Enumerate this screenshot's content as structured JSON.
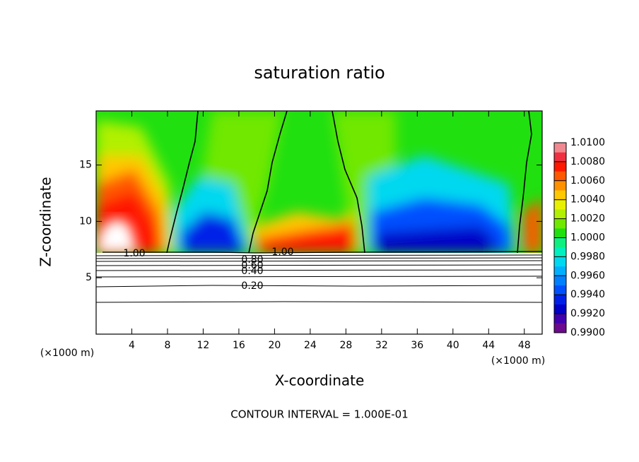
{
  "chart_data": {
    "type": "contour",
    "title": "saturation ratio",
    "xlabel": "X-coordinate",
    "ylabel": "Z-coordinate",
    "x_unit_labels": [
      "(×1000 m)",
      "(×1000 m)"
    ],
    "footer": "CONTOUR INTERVAL = 1.000E-01",
    "xlim": [
      0,
      50
    ],
    "ylim": [
      0,
      19.8
    ],
    "xticks": [
      4,
      8,
      12,
      16,
      20,
      24,
      28,
      32,
      36,
      40,
      44,
      48
    ],
    "yticks": [
      5,
      10,
      15
    ],
    "contour_labels": [
      {
        "value": 1,
        "label": "1.00"
      },
      {
        "value": 1,
        "label": "1.00"
      },
      {
        "value": 0.8,
        "label": "0.80"
      },
      {
        "value": 0.6,
        "label": "0.60"
      },
      {
        "value": 0.4,
        "label": "0.40"
      },
      {
        "value": 0.2,
        "label": "0.20"
      }
    ],
    "colorbar": {
      "lim": [
        0.99,
        1.01
      ],
      "ticks": [
        {
          "value": 0.99,
          "label": "0.9900"
        },
        {
          "value": 0.992,
          "label": "0.9920"
        },
        {
          "value": 0.994,
          "label": "0.9940"
        },
        {
          "value": 0.996,
          "label": "0.9960"
        },
        {
          "value": 0.998,
          "label": "0.9980"
        },
        {
          "value": 1.0,
          "label": "1.0000"
        },
        {
          "value": 1.002,
          "label": "1.0020"
        },
        {
          "value": 1.004,
          "label": "1.0040"
        },
        {
          "value": 1.006,
          "label": "1.0060"
        },
        {
          "value": 1.008,
          "label": "1.0080"
        },
        {
          "value": 1.01,
          "label": "1.0100"
        }
      ],
      "colors": [
        "#6b0a8e",
        "#4000b0",
        "#0000c8",
        "#0020e8",
        "#0050ff",
        "#0080ff",
        "#00b0ff",
        "#00d8f0",
        "#00f0c0",
        "#10f080",
        "#20e010",
        "#70e800",
        "#b0f000",
        "#e8f000",
        "#ffc800",
        "#ff9000",
        "#ff5800",
        "#ff1800",
        "#f03040",
        "#f08890"
      ]
    }
  }
}
